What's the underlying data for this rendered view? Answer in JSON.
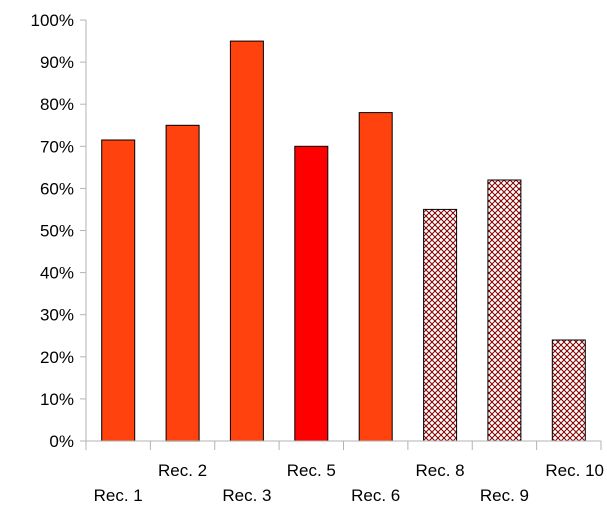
{
  "chart_data": {
    "type": "bar",
    "title": "",
    "xlabel": "",
    "ylabel": "",
    "categories": [
      "Rec. 1",
      "Rec. 2",
      "Rec. 3",
      "Rec. 5",
      "Rec. 6",
      "Rec. 8",
      "Rec. 9",
      "Rec. 10"
    ],
    "values": [
      71.5,
      75,
      95,
      70,
      78,
      55,
      62,
      24
    ],
    "fills": [
      "solid-orange",
      "solid-orange",
      "solid-orange",
      "solid-red",
      "solid-orange",
      "crosshatch",
      "crosshatch",
      "crosshatch"
    ],
    "ylim": [
      0,
      100
    ],
    "yticks": [
      "0%",
      "10%",
      "20%",
      "30%",
      "40%",
      "50%",
      "60%",
      "70%",
      "80%",
      "90%",
      "100%"
    ],
    "grid": false,
    "legend": "none",
    "colors": {
      "solid-orange": "#ff420e",
      "solid-red": "#ff0000",
      "crosshatch": "#800000",
      "axis": "#b3b3b3",
      "bar_outline": "#000000"
    }
  }
}
